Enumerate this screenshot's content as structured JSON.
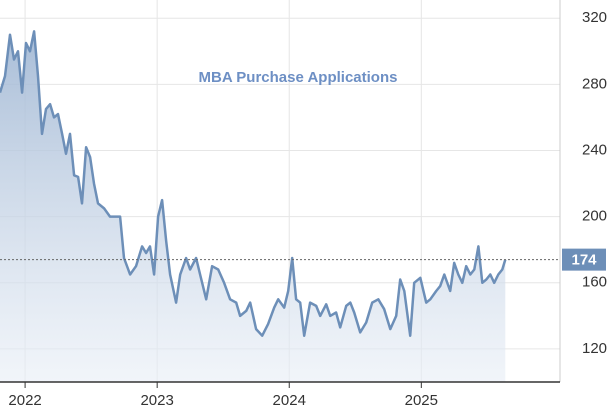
{
  "chart_data": {
    "type": "line",
    "title": "MBA Purchase Applications",
    "series": [
      {
        "name": "MBA Purchase Applications",
        "color": "#6d8fb8",
        "x": [
          2021.81,
          2021.848,
          2021.886,
          2021.916,
          2021.946,
          2021.977,
          2022.007,
          2022.037,
          2022.068,
          2022.098,
          2022.128,
          2022.158,
          2022.189,
          2022.219,
          2022.249,
          2022.28,
          2022.31,
          2022.34,
          2022.371,
          2022.401,
          2022.431,
          2022.462,
          2022.492,
          2022.522,
          2022.552,
          2022.598,
          2022.643,
          2022.689,
          2022.719,
          2022.749,
          2022.795,
          2022.84,
          2022.886,
          2022.916,
          2022.946,
          2022.977,
          2023.007,
          2023.037,
          2023.068,
          2023.098,
          2023.143,
          2023.174,
          2023.219,
          2023.249,
          2023.295,
          2023.325,
          2023.371,
          2023.416,
          2023.462,
          2023.507,
          2023.552,
          2023.598,
          2023.628,
          2023.674,
          2023.704,
          2023.749,
          2023.795,
          2023.84,
          2023.886,
          2023.916,
          2023.962,
          2023.992,
          2024.022,
          2024.052,
          2024.083,
          2024.113,
          2024.158,
          2024.204,
          2024.234,
          2024.28,
          2024.31,
          2024.355,
          2024.386,
          2024.431,
          2024.462,
          2024.492,
          2024.537,
          2024.583,
          2024.628,
          2024.674,
          2024.719,
          2024.765,
          2024.81,
          2024.84,
          2024.871,
          2024.916,
          2024.946,
          2024.992,
          2025.037,
          2025.068,
          2025.113,
          2025.143,
          2025.174,
          2025.219,
          2025.249,
          2025.28,
          2025.31,
          2025.34,
          2025.371,
          2025.401,
          2025.432,
          2025.462,
          2025.492,
          2025.522,
          2025.552,
          2025.583,
          2025.613,
          2025.636
        ],
        "values": [
          275,
          285,
          310,
          295,
          300,
          275,
          305,
          300,
          312,
          285,
          250,
          265,
          268,
          260,
          262,
          250,
          238,
          250,
          225,
          224,
          208,
          242,
          236,
          220,
          208,
          205,
          200,
          200,
          200,
          175,
          165,
          170,
          182,
          178,
          182,
          165,
          200,
          210,
          185,
          165,
          148,
          165,
          175,
          168,
          175,
          165,
          150,
          170,
          168,
          160,
          150,
          148,
          140,
          143,
          148,
          132,
          128,
          135,
          145,
          150,
          145,
          155,
          175,
          150,
          148,
          128,
          148,
          146,
          140,
          147,
          140,
          142,
          133,
          146,
          148,
          142,
          130,
          136,
          148,
          150,
          144,
          132,
          140,
          162,
          155,
          128,
          160,
          163,
          148,
          150,
          155,
          158,
          165,
          155,
          172,
          165,
          160,
          170,
          165,
          168,
          182,
          160,
          162,
          165,
          160,
          165,
          168,
          174
        ]
      }
    ],
    "xlim": [
      2021.81,
      2026.05
    ],
    "xticks": [
      2022,
      2023,
      2024,
      2025
    ],
    "ylim": [
      100,
      331
    ],
    "yticks": [
      120,
      160,
      200,
      240,
      280,
      320
    ],
    "grid": true
  }
}
